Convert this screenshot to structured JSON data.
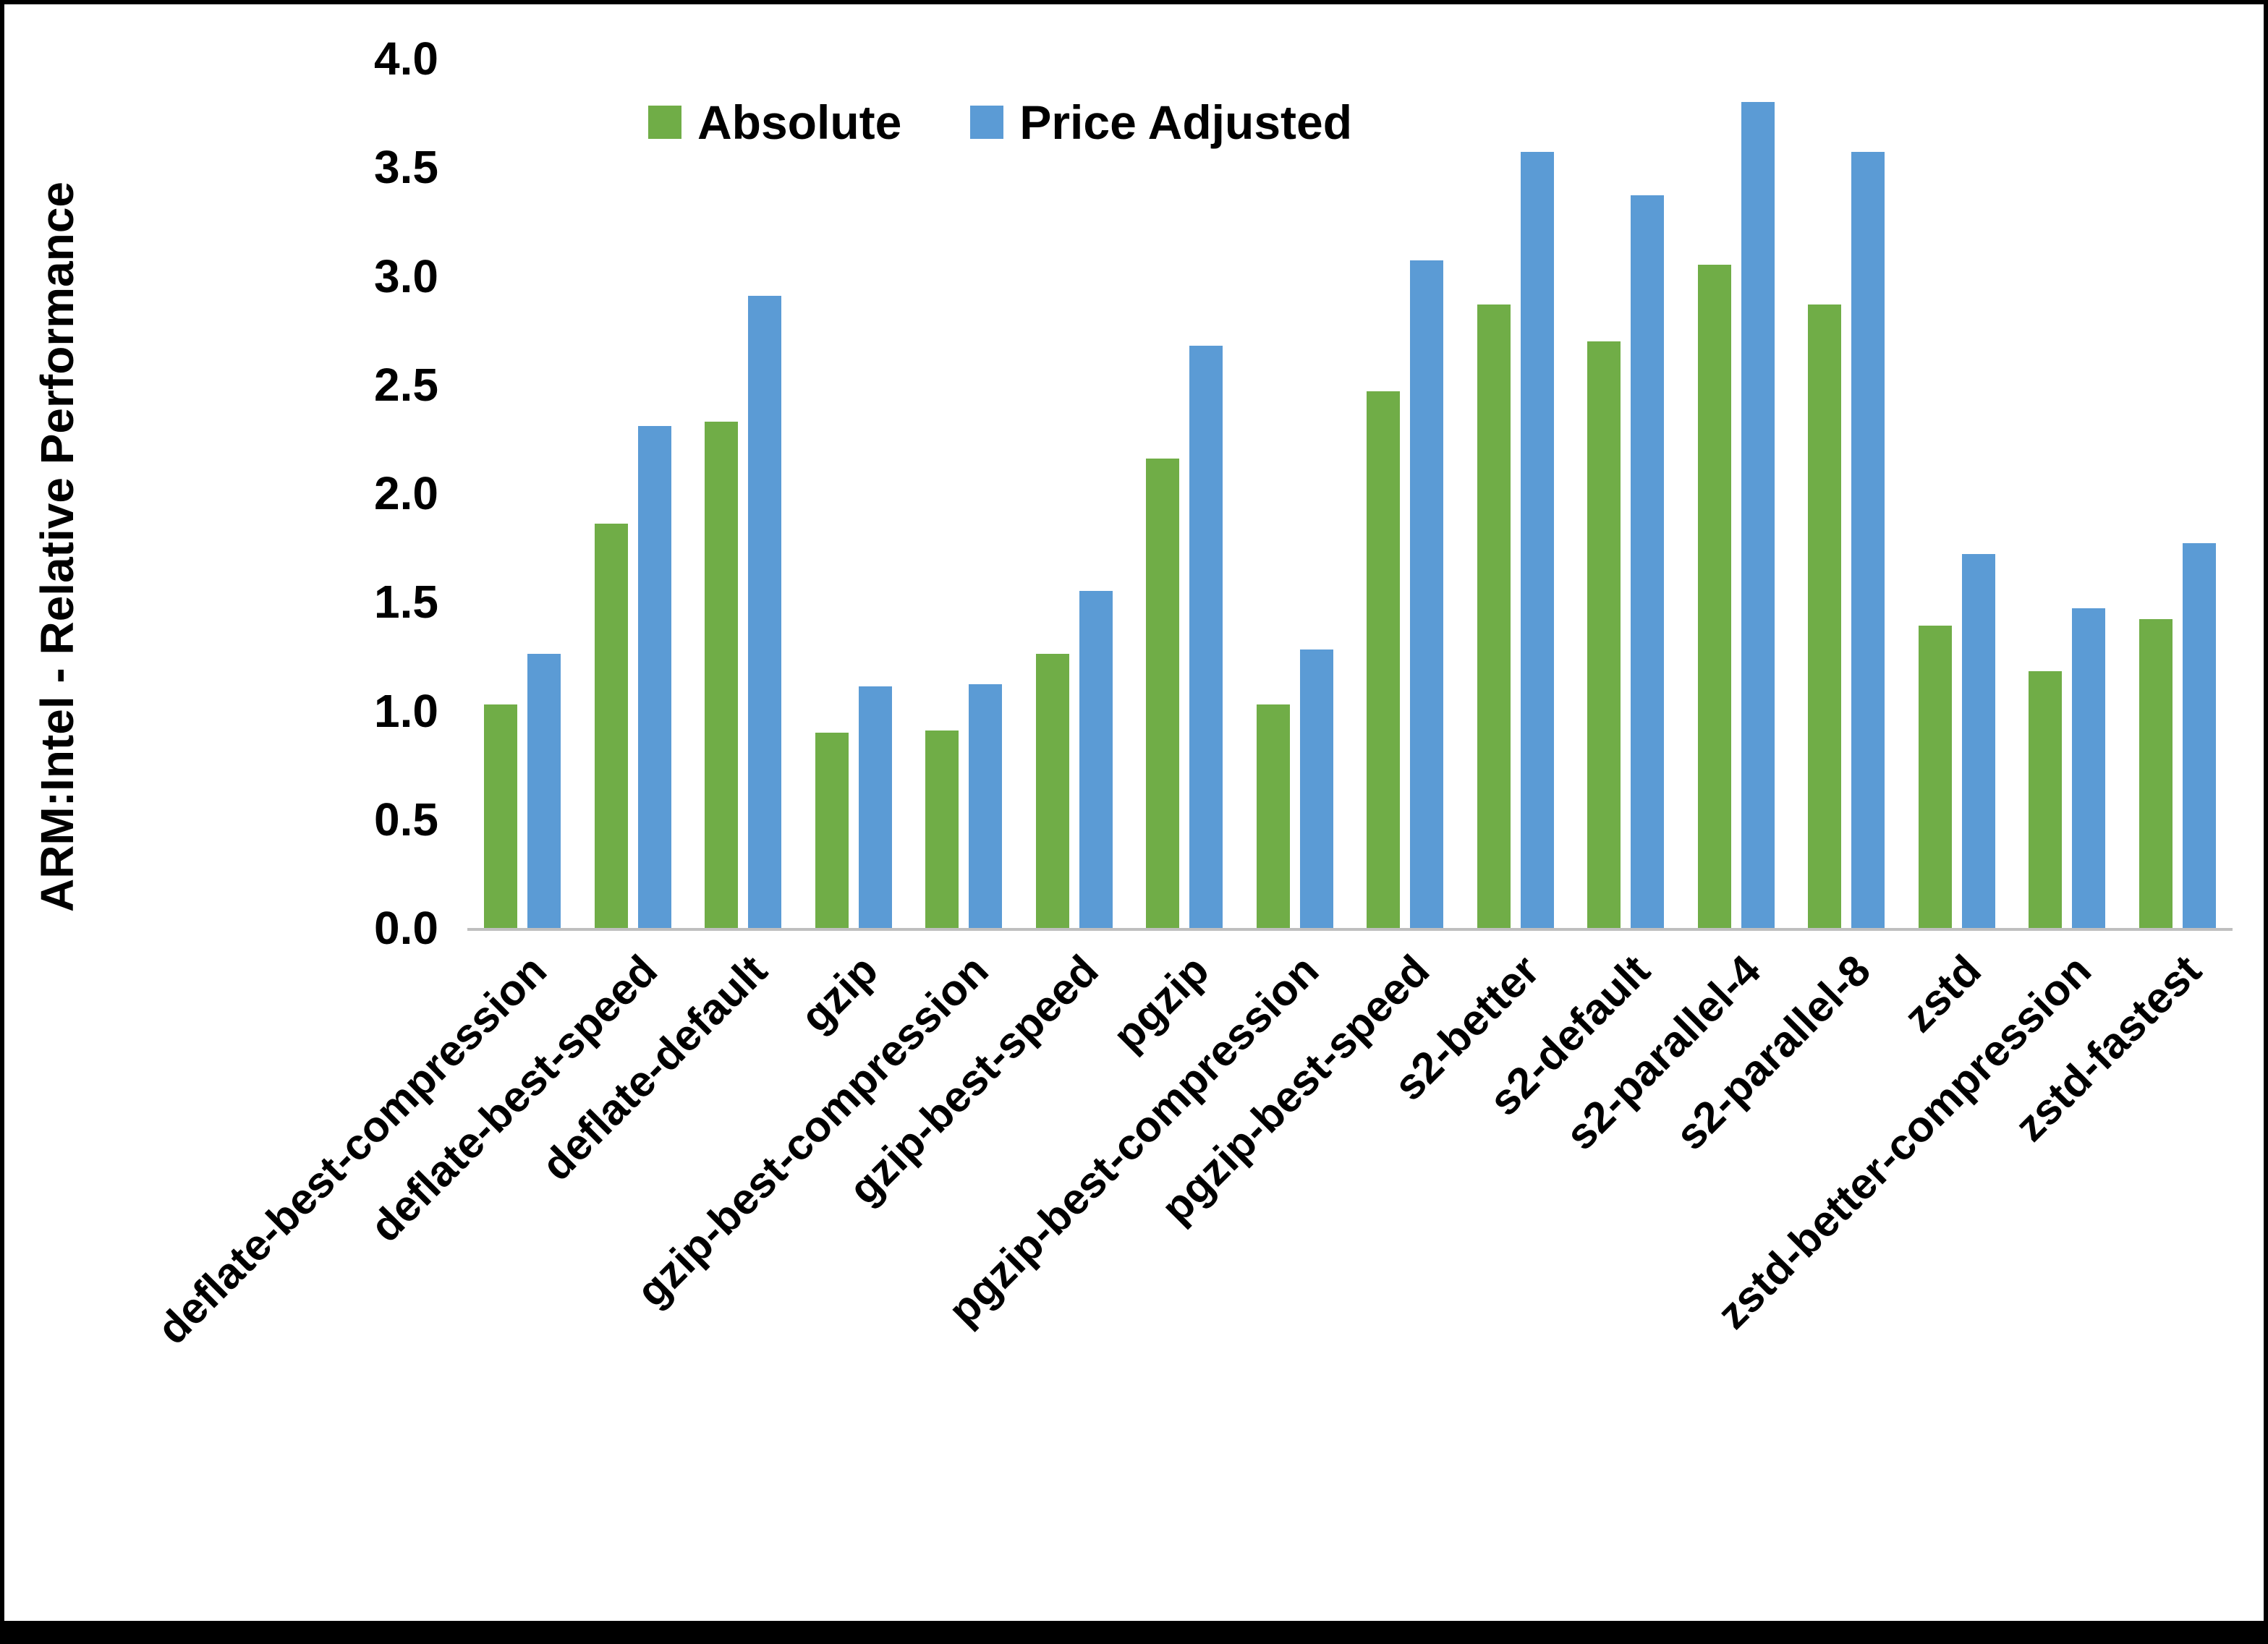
{
  "figure": {
    "border_color": "#000000",
    "axis_line_color": "#bfbfbf",
    "background": "#ffffff"
  },
  "chart_data": {
    "type": "bar",
    "title": "",
    "xlabel": "",
    "ylabel": "ARM:Intel - Relative Performance",
    "ylim": [
      0,
      4.0
    ],
    "yticks": [
      0.0,
      0.5,
      1.0,
      1.5,
      2.0,
      2.5,
      3.0,
      3.5,
      4.0
    ],
    "ytick_labels": [
      "0.0",
      "0.5",
      "1.0",
      "1.5",
      "2.0",
      "2.5",
      "3.0",
      "3.5",
      "4.0"
    ],
    "grid": false,
    "legend_position": "top",
    "categories": [
      "deflate-best-compression",
      "deflate-best-speed",
      "deflate-default",
      "gzip",
      "gzip-best-compression",
      "gzip-best-speed",
      "pgzip",
      "pgzip-best-compression",
      "pgzip-best-speed",
      "s2-better",
      "s2-default",
      "s2-parallel-4",
      "s2-parallel-8",
      "zstd",
      "zstd-better-compression",
      "zstd-fastest"
    ],
    "series": [
      {
        "name": "Absolute",
        "color": "#70AD47",
        "values": [
          1.03,
          1.86,
          2.33,
          0.9,
          0.91,
          1.26,
          2.16,
          1.03,
          2.47,
          2.87,
          2.7,
          3.05,
          2.87,
          1.39,
          1.18,
          1.42
        ]
      },
      {
        "name": "Price Adjusted",
        "color": "#5B9BD5",
        "values": [
          1.26,
          2.31,
          2.91,
          1.11,
          1.12,
          1.55,
          2.68,
          1.28,
          3.07,
          3.57,
          3.37,
          3.8,
          3.57,
          1.72,
          1.47,
          1.77
        ]
      }
    ]
  }
}
